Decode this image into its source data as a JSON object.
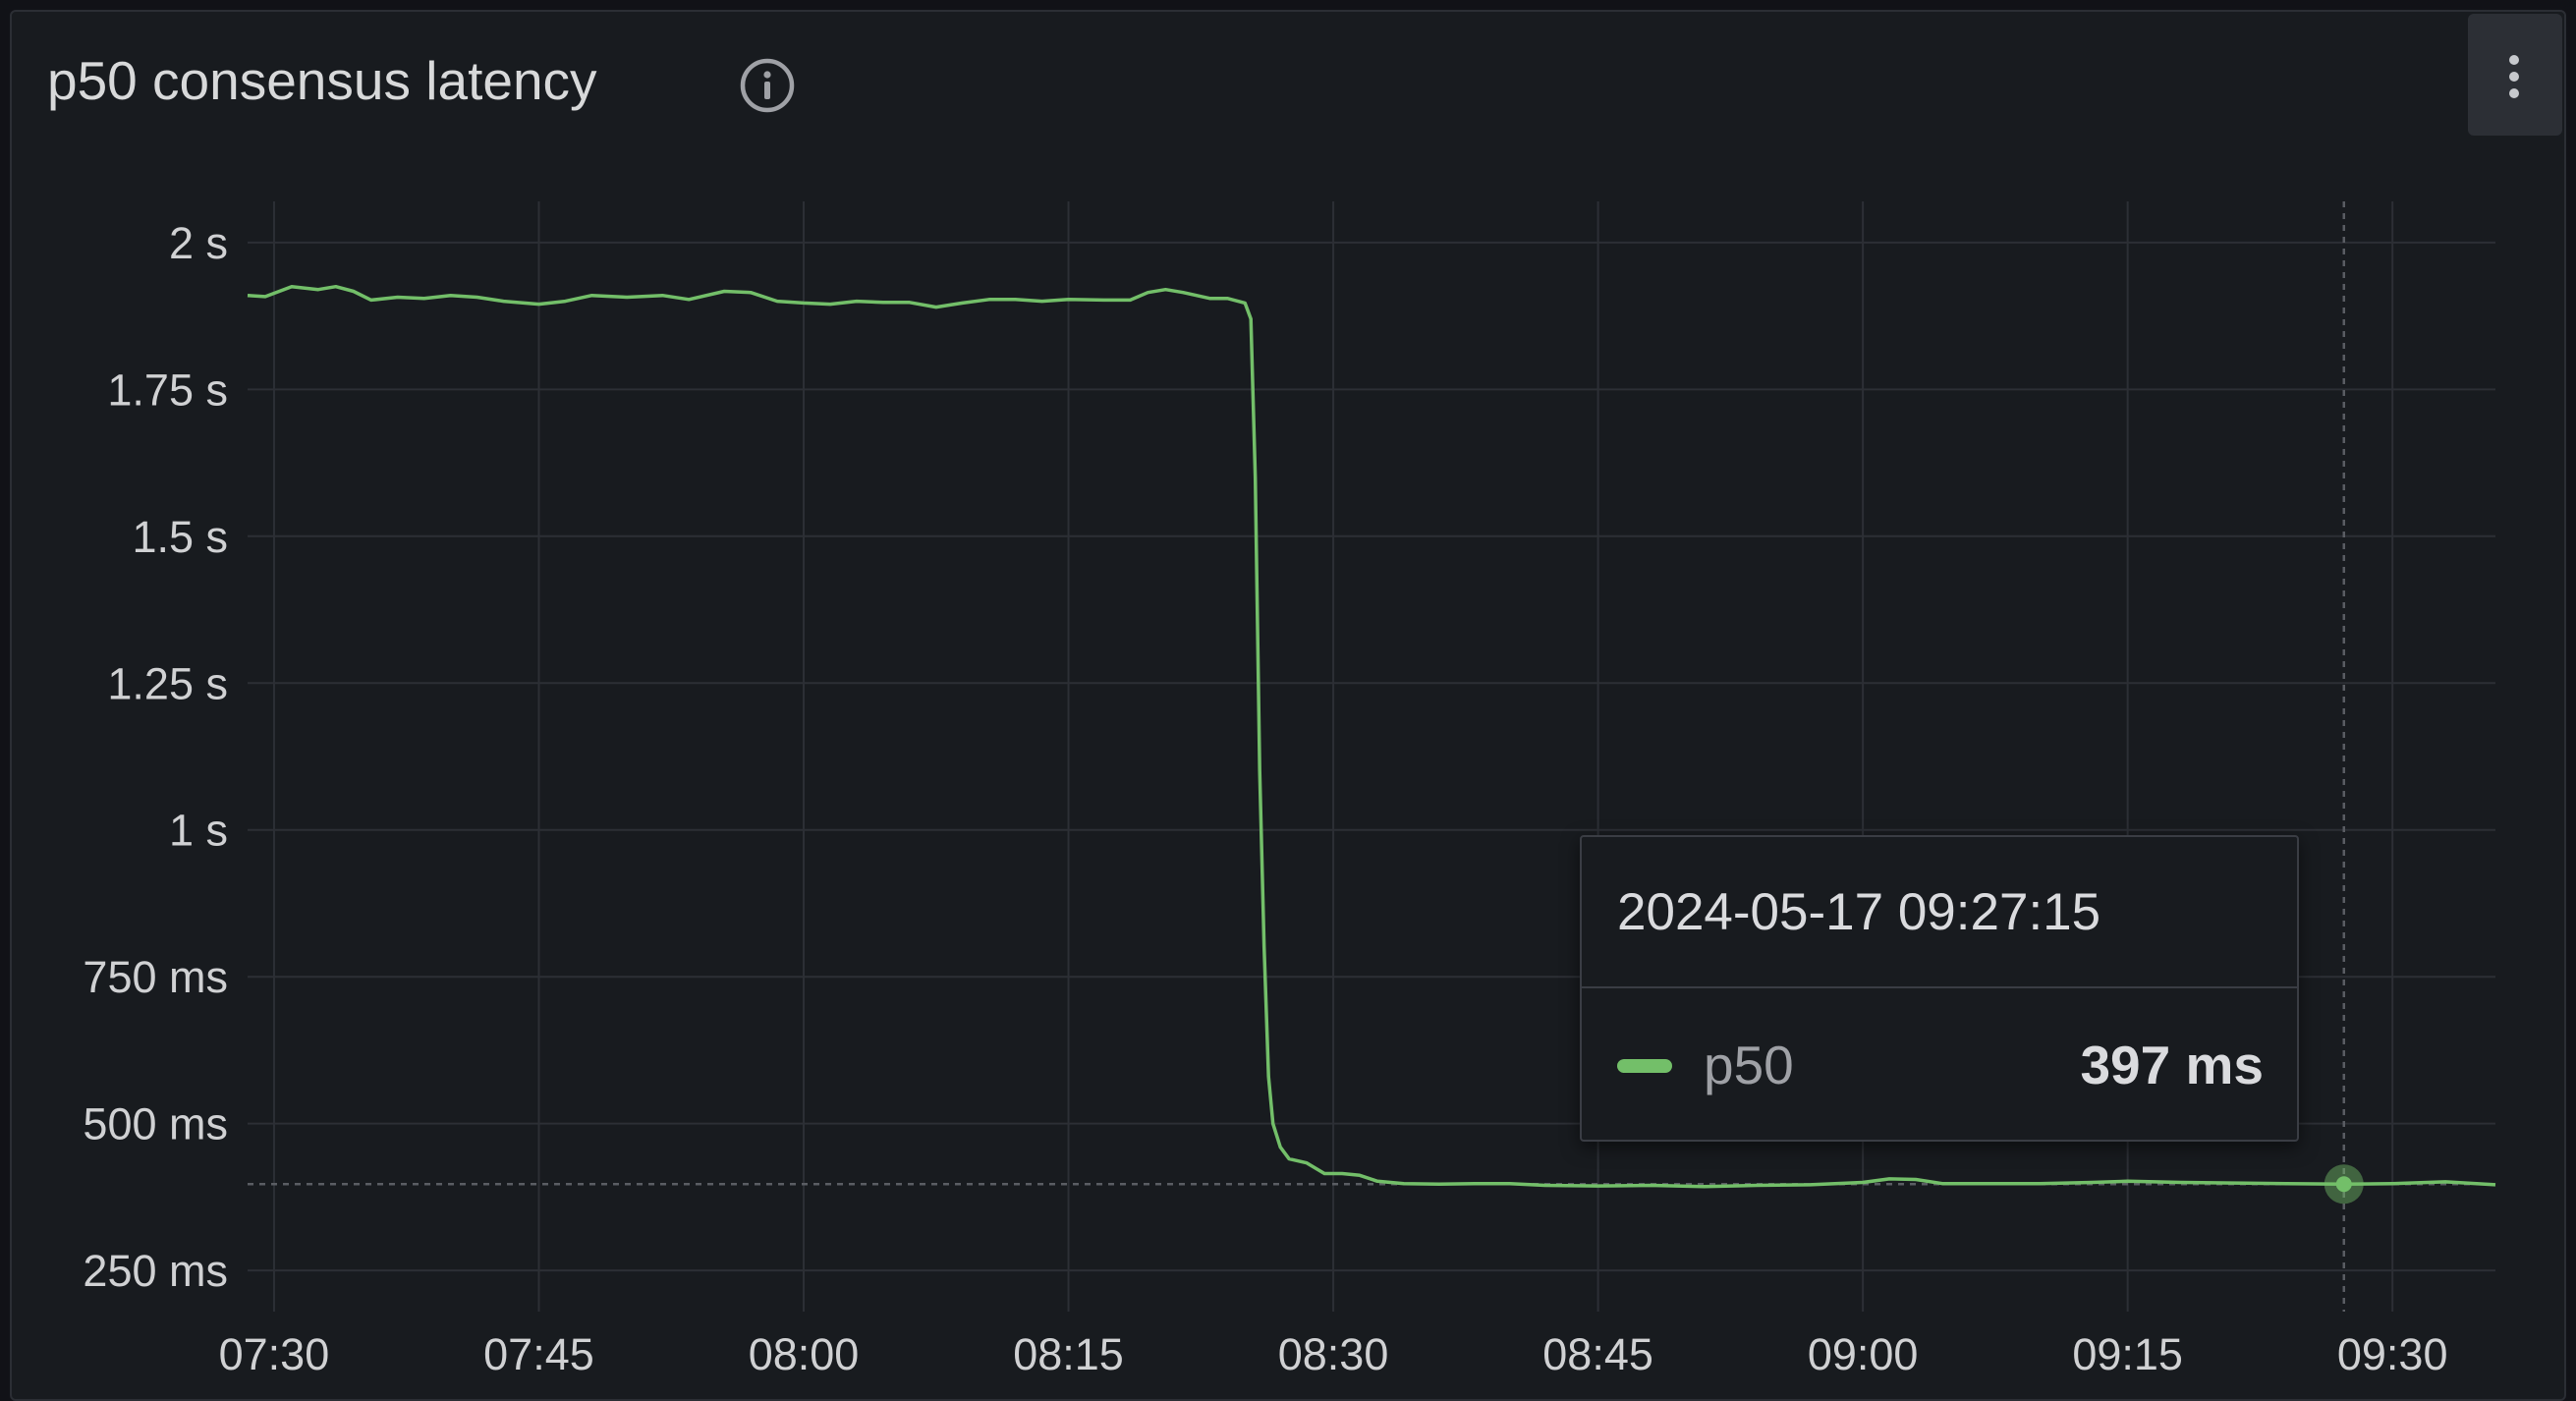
{
  "panel": {
    "title": "p50 consensus latency",
    "info_icon": "info-circle-icon",
    "menu_icon": "kebab-menu-icon"
  },
  "tooltip": {
    "timestamp": "2024-05-17 09:27:15",
    "series": "p50",
    "value": "397 ms"
  },
  "chart_data": {
    "type": "line",
    "title": "p50 consensus latency",
    "x_unit": "time (HH:MM)",
    "y_unit": "ms",
    "xlim": [
      "07:28:30",
      "09:35:50"
    ],
    "ylim": [
      180,
      2070
    ],
    "y_ticks": [
      {
        "value": 250,
        "label": "250 ms"
      },
      {
        "value": 500,
        "label": "500 ms"
      },
      {
        "value": 750,
        "label": "750 ms"
      },
      {
        "value": 1000,
        "label": "1 s"
      },
      {
        "value": 1250,
        "label": "1.25 s"
      },
      {
        "value": 1500,
        "label": "1.5 s"
      },
      {
        "value": 1750,
        "label": "1.75 s"
      },
      {
        "value": 2000,
        "label": "2 s"
      }
    ],
    "x_ticks": [
      "07:30",
      "07:45",
      "08:00",
      "08:15",
      "08:30",
      "08:45",
      "09:00",
      "09:15",
      "09:30"
    ],
    "grid": true,
    "legend": "none",
    "series": [
      {
        "color": "#73bf69",
        "points": [
          [
            "07:28:30",
            1910
          ],
          [
            "07:29:30",
            1908
          ],
          [
            "07:31:00",
            1925
          ],
          [
            "07:32:30",
            1920
          ],
          [
            "07:33:30",
            1925
          ],
          [
            "07:34:30",
            1917
          ],
          [
            "07:35:30",
            1902
          ],
          [
            "07:37:00",
            1907
          ],
          [
            "07:38:30",
            1905
          ],
          [
            "07:40:00",
            1910
          ],
          [
            "07:41:30",
            1907
          ],
          [
            "07:43:00",
            1900
          ],
          [
            "07:45:00",
            1895
          ],
          [
            "07:46:30",
            1900
          ],
          [
            "07:48:00",
            1910
          ],
          [
            "07:50:00",
            1907
          ],
          [
            "07:52:00",
            1910
          ],
          [
            "07:53:30",
            1903
          ],
          [
            "07:55:30",
            1917
          ],
          [
            "07:57:00",
            1915
          ],
          [
            "07:58:30",
            1900
          ],
          [
            "08:00:00",
            1897
          ],
          [
            "08:01:30",
            1895
          ],
          [
            "08:03:00",
            1900
          ],
          [
            "08:04:30",
            1898
          ],
          [
            "08:06:00",
            1898
          ],
          [
            "08:07:30",
            1890
          ],
          [
            "08:09:00",
            1897
          ],
          [
            "08:10:30",
            1903
          ],
          [
            "08:12:00",
            1903
          ],
          [
            "08:13:30",
            1900
          ],
          [
            "08:15:00",
            1903
          ],
          [
            "08:17:00",
            1902
          ],
          [
            "08:18:30",
            1902
          ],
          [
            "08:19:30",
            1915
          ],
          [
            "08:20:30",
            1920
          ],
          [
            "08:21:30",
            1915
          ],
          [
            "08:23:00",
            1905
          ],
          [
            "08:24:00",
            1905
          ],
          [
            "08:25:00",
            1897
          ],
          [
            "08:25:20",
            1870
          ],
          [
            "08:25:35",
            1600
          ],
          [
            "08:25:50",
            1100
          ],
          [
            "08:26:05",
            800
          ],
          [
            "08:26:20",
            580
          ],
          [
            "08:26:35",
            500
          ],
          [
            "08:27:00",
            460
          ],
          [
            "08:27:30",
            440
          ],
          [
            "08:28:30",
            433
          ],
          [
            "08:29:30",
            415
          ],
          [
            "08:30:30",
            415
          ],
          [
            "08:31:30",
            412
          ],
          [
            "08:32:30",
            402
          ],
          [
            "08:34:00",
            398
          ],
          [
            "08:36:00",
            397
          ],
          [
            "08:38:00",
            398
          ],
          [
            "08:40:00",
            398
          ],
          [
            "08:42:00",
            395
          ],
          [
            "08:45:00",
            394
          ],
          [
            "08:48:00",
            395
          ],
          [
            "08:51:00",
            393
          ],
          [
            "08:54:00",
            395
          ],
          [
            "08:57:00",
            396
          ],
          [
            "09:00:00",
            400
          ],
          [
            "09:01:30",
            406
          ],
          [
            "09:03:00",
            405
          ],
          [
            "09:04:30",
            398
          ],
          [
            "09:07:00",
            398
          ],
          [
            "09:10:00",
            398
          ],
          [
            "09:13:00",
            400
          ],
          [
            "09:15:00",
            402
          ],
          [
            "09:18:00",
            400
          ],
          [
            "09:21:00",
            399
          ],
          [
            "09:24:00",
            398
          ],
          [
            "09:27:15",
            397
          ],
          [
            "09:30:00",
            398
          ],
          [
            "09:33:00",
            401
          ],
          [
            "09:35:50",
            396
          ]
        ]
      }
    ],
    "hover": {
      "x": "09:27:15",
      "y": 397
    }
  }
}
